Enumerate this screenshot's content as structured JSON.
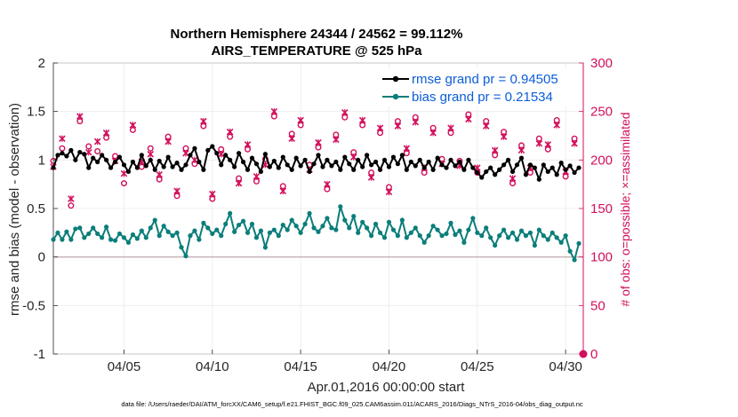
{
  "chart_data": {
    "type": "line",
    "title_line1": "Northern Hemisphere 24344 / 24562 = 99.112%",
    "title_line2": "AIRS_TEMPERATURE @ 525 hPa",
    "xlabel": "Apr.01,2016 00:00:00 start",
    "ylabel_left": "rmse and bias (model - observation)",
    "ylabel_right": "# of obs: o=possible; ×=assimilated",
    "footnote": "data file: /Users/raeder/DAI/ATM_forcXX/CAM6_setup/f.e21.FHIST_BGC.f09_025.CAM6assim.011/ACARS_2016/Diags_NTrS_2016-04/obs_diag_output.nc",
    "x_tick_labels": [
      "04/05",
      "04/10",
      "04/15",
      "04/20",
      "04/25",
      "04/30"
    ],
    "x_tick_values": [
      5,
      10,
      15,
      20,
      25,
      30
    ],
    "xlim": [
      1,
      31
    ],
    "ylim_left": [
      -1,
      2
    ],
    "ylim_right": [
      0,
      300
    ],
    "y_tick_labels_left": [
      "-1",
      "-0.5",
      "0",
      "0.5",
      "1",
      "1.5",
      "2"
    ],
    "y_tick_values_left": [
      -1,
      -0.5,
      0,
      0.5,
      1,
      1.5,
      2
    ],
    "y_tick_labels_right": [
      "0",
      "50",
      "100",
      "150",
      "200",
      "250",
      "300"
    ],
    "y_tick_values_right": [
      0,
      50,
      100,
      150,
      200,
      250,
      300
    ],
    "colors": {
      "rmse": "#000000",
      "bias": "#0b7e7a",
      "obs": "#d10f5c",
      "zero_line": "#b7a3a8",
      "legend_text": "#0b5ed7"
    },
    "series": [
      {
        "name": "rmse grand pr = 0.94505",
        "x": [
          1.0,
          1.25,
          1.5,
          1.75,
          2.0,
          2.25,
          2.5,
          2.75,
          3.0,
          3.25,
          3.5,
          3.75,
          4.0,
          4.25,
          4.5,
          4.75,
          5.0,
          5.25,
          5.5,
          5.75,
          6.0,
          6.25,
          6.5,
          6.75,
          7.0,
          7.25,
          7.5,
          7.75,
          8.0,
          8.25,
          8.5,
          8.75,
          9.0,
          9.25,
          9.5,
          9.75,
          10.0,
          10.25,
          10.5,
          10.75,
          11.0,
          11.25,
          11.5,
          11.75,
          12.0,
          12.25,
          12.5,
          12.75,
          13.0,
          13.25,
          13.5,
          13.75,
          14.0,
          14.25,
          14.5,
          14.75,
          15.0,
          15.25,
          15.5,
          15.75,
          16.0,
          16.25,
          16.5,
          16.75,
          17.0,
          17.25,
          17.5,
          17.75,
          18.0,
          18.25,
          18.5,
          18.75,
          19.0,
          19.25,
          19.5,
          19.75,
          20.0,
          20.25,
          20.5,
          20.75,
          21.0,
          21.25,
          21.5,
          21.75,
          22.0,
          22.25,
          22.5,
          22.75,
          23.0,
          23.25,
          23.5,
          23.75,
          24.0,
          24.25,
          24.5,
          24.75,
          25.0,
          25.25,
          25.5,
          25.75,
          26.0,
          26.25,
          26.5,
          26.75,
          27.0,
          27.25,
          27.5,
          27.75,
          28.0,
          28.25,
          28.5,
          28.75,
          29.0,
          29.25,
          29.5,
          29.75,
          30.0,
          30.25,
          30.5,
          30.75
        ],
        "values": [
          0.92,
          1.05,
          1.07,
          1.04,
          1.1,
          1.0,
          1.08,
          1.06,
          0.92,
          1.02,
          0.98,
          1.05,
          1.0,
          0.92,
          0.98,
          1.03,
          0.95,
          0.88,
          0.98,
          0.92,
          1.05,
          0.94,
          1.0,
          0.9,
          0.99,
          0.93,
          1.03,
          0.93,
          0.97,
          0.9,
          0.95,
          1.05,
          1.12,
          0.98,
          0.9,
          1.1,
          1.14,
          1.07,
          0.95,
          1.05,
          1.0,
          0.93,
          1.07,
          0.98,
          0.9,
          1.02,
          0.96,
          0.88,
          1.06,
          0.93,
          0.99,
          0.92,
          1.03,
          0.95,
          0.9,
          1.02,
          0.94,
          1.0,
          0.88,
          0.96,
          1.05,
          0.93,
          1.0,
          0.94,
          0.98,
          0.9,
          1.03,
          0.96,
          0.9,
          1.0,
          0.93,
          1.05,
          0.95,
          0.98,
          0.9,
          1.0,
          0.93,
          1.03,
          0.96,
          1.05,
          0.9,
          0.98,
          0.94,
          1.0,
          0.92,
          0.98,
          0.9,
          1.02,
          0.95,
          0.92,
          1.0,
          0.94,
          0.98,
          0.9,
          1.0,
          0.92,
          0.87,
          0.82,
          0.88,
          0.92,
          0.85,
          0.9,
          0.95,
          1.0,
          0.88,
          0.95,
          1.02,
          0.85,
          0.95,
          0.92,
          0.8,
          0.95,
          0.88,
          0.92,
          0.85,
          0.97,
          0.9,
          0.94,
          0.87,
          0.92
        ]
      },
      {
        "name": "bias grand pr = 0.21534",
        "x": [
          1.0,
          1.25,
          1.5,
          1.75,
          2.0,
          2.25,
          2.5,
          2.75,
          3.0,
          3.25,
          3.5,
          3.75,
          4.0,
          4.25,
          4.5,
          4.75,
          5.0,
          5.25,
          5.5,
          5.75,
          6.0,
          6.25,
          6.5,
          6.75,
          7.0,
          7.25,
          7.5,
          7.75,
          8.0,
          8.25,
          8.5,
          8.75,
          9.0,
          9.25,
          9.5,
          9.75,
          10.0,
          10.25,
          10.5,
          10.75,
          11.0,
          11.25,
          11.5,
          11.75,
          12.0,
          12.25,
          12.5,
          12.75,
          13.0,
          13.25,
          13.5,
          13.75,
          14.0,
          14.25,
          14.5,
          14.75,
          15.0,
          15.25,
          15.5,
          15.75,
          16.0,
          16.25,
          16.5,
          16.75,
          17.0,
          17.25,
          17.5,
          17.75,
          18.0,
          18.25,
          18.5,
          18.75,
          19.0,
          19.25,
          19.5,
          19.75,
          20.0,
          20.25,
          20.5,
          20.75,
          21.0,
          21.25,
          21.5,
          21.75,
          22.0,
          22.25,
          22.5,
          22.75,
          23.0,
          23.25,
          23.5,
          23.75,
          24.0,
          24.25,
          24.5,
          24.75,
          25.0,
          25.25,
          25.5,
          25.75,
          26.0,
          26.25,
          26.5,
          26.75,
          27.0,
          27.25,
          27.5,
          27.75,
          28.0,
          28.25,
          28.5,
          28.75,
          29.0,
          29.25,
          29.5,
          29.75,
          30.0,
          30.25,
          30.5,
          30.75
        ],
        "values": [
          0.18,
          0.25,
          0.18,
          0.26,
          0.18,
          0.29,
          0.3,
          0.2,
          0.24,
          0.3,
          0.24,
          0.2,
          0.31,
          0.18,
          0.17,
          0.24,
          0.2,
          0.15,
          0.23,
          0.19,
          0.27,
          0.2,
          0.3,
          0.38,
          0.22,
          0.32,
          0.26,
          0.22,
          0.25,
          0.1,
          0.01,
          0.22,
          0.27,
          0.18,
          0.35,
          0.3,
          0.24,
          0.28,
          0.22,
          0.34,
          0.45,
          0.26,
          0.33,
          0.37,
          0.25,
          0.34,
          0.2,
          0.27,
          0.1,
          0.25,
          0.28,
          0.22,
          0.33,
          0.28,
          0.38,
          0.32,
          0.25,
          0.34,
          0.45,
          0.3,
          0.26,
          0.32,
          0.4,
          0.3,
          0.28,
          0.52,
          0.38,
          0.3,
          0.42,
          0.25,
          0.36,
          0.3,
          0.22,
          0.34,
          0.25,
          0.2,
          0.36,
          0.28,
          0.22,
          0.38,
          0.2,
          0.25,
          0.3,
          0.22,
          0.15,
          0.22,
          0.32,
          0.28,
          0.22,
          0.24,
          0.35,
          0.23,
          0.27,
          0.15,
          0.28,
          0.4,
          0.25,
          0.22,
          0.3,
          0.2,
          0.12,
          0.22,
          0.28,
          0.2,
          0.25,
          0.18,
          0.27,
          0.22,
          0.25,
          0.12,
          0.28,
          0.22,
          0.18,
          0.25,
          0.2,
          0.15,
          0.22,
          0.06,
          -0.03,
          0.14
        ]
      },
      {
        "name": "possible obs (o)",
        "axis": "right",
        "x": [
          1.0,
          1.5,
          2.0,
          2.5,
          3.0,
          3.5,
          4.0,
          4.5,
          5.0,
          5.5,
          6.0,
          6.5,
          7.0,
          7.5,
          8.0,
          8.5,
          9.0,
          9.5,
          10.0,
          10.5,
          11.0,
          11.5,
          12.0,
          12.5,
          13.0,
          13.5,
          14.0,
          14.5,
          15.0,
          15.5,
          16.0,
          16.5,
          17.0,
          17.5,
          18.0,
          18.5,
          19.0,
          19.5,
          20.0,
          20.5,
          21.0,
          21.5,
          22.0,
          22.5,
          23.0,
          23.5,
          24.0,
          24.5,
          25.0,
          25.5,
          26.0,
          26.5,
          27.0,
          27.5,
          28.0,
          28.5,
          29.0,
          29.5,
          30.0,
          30.5
        ],
        "values": [
          199,
          212,
          153,
          240,
          214,
          209,
          223,
          204,
          176,
          231,
          193,
          212,
          180,
          224,
          163,
          212,
          196,
          235,
          160,
          211,
          224,
          181,
          211,
          178,
          201,
          245,
          173,
          227,
          236,
          195,
          213,
          170,
          226,
          244,
          208,
          236,
          187,
          228,
          172,
          240,
          207,
          244,
          187,
          233,
          201,
          228,
          199,
          247,
          187,
          240,
          205,
          229,
          176,
          215,
          187,
          222,
          211,
          241,
          183,
          222
        ]
      },
      {
        "name": "assimilated obs (×)",
        "axis": "right",
        "x": [
          1.0,
          1.5,
          2.0,
          2.5,
          3.0,
          3.5,
          4.0,
          4.5,
          5.0,
          5.5,
          6.0,
          6.5,
          7.0,
          7.5,
          8.0,
          8.5,
          9.0,
          9.5,
          10.0,
          10.5,
          11.0,
          11.5,
          12.0,
          12.5,
          13.0,
          13.5,
          14.0,
          14.5,
          15.0,
          15.5,
          16.0,
          16.5,
          17.0,
          17.5,
          18.0,
          18.5,
          19.0,
          19.5,
          20.0,
          20.5,
          21.0,
          21.5,
          22.0,
          22.5,
          23.0,
          23.5,
          24.0,
          24.5,
          25.0,
          25.5,
          26.0,
          26.5,
          27.0,
          27.5,
          28.0,
          28.5,
          29.0,
          29.5,
          30.0,
          30.5
        ],
        "values": [
          193,
          222,
          160,
          245,
          208,
          219,
          228,
          199,
          186,
          236,
          198,
          206,
          185,
          219,
          168,
          207,
          200,
          240,
          165,
          206,
          229,
          176,
          216,
          183,
          195,
          250,
          168,
          222,
          241,
          190,
          218,
          175,
          221,
          249,
          203,
          241,
          182,
          233,
          167,
          235,
          212,
          239,
          192,
          228,
          196,
          233,
          194,
          242,
          192,
          235,
          210,
          224,
          181,
          210,
          192,
          217,
          216,
          236,
          188,
          217
        ]
      }
    ]
  }
}
